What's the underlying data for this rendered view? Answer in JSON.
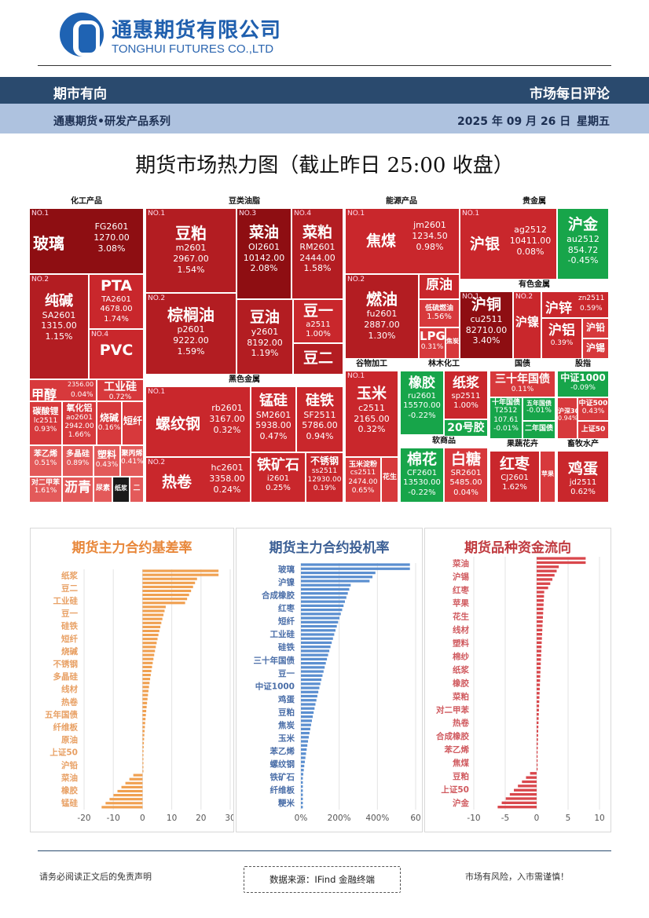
{
  "header": {
    "company_cn": "通惠期货有限公司",
    "company_en": "TONGHUI FUTURES CO.,LTD",
    "band_left": "期市有向",
    "band_right": "市场每日评论",
    "series": "通惠期货•研发产品系列",
    "date": "2025 年 09 月 26 日",
    "weekday": "星期五"
  },
  "title": "期货市场热力图（截止昨日 25:00 收盘）",
  "heatmap": {
    "sectors": [
      "化工产品",
      "豆类油脂",
      "能源产品",
      "贵金属",
      "有色金属",
      "黑色金属",
      "谷物加工",
      "林木化工",
      "国债",
      "股指",
      "软商品",
      "果蔬花卉",
      "畜牧水产"
    ],
    "tiles": [
      {
        "name": "玻璃",
        "code": "FG2601",
        "price": "1270.00",
        "chg": "3.08%",
        "no": "NO.1"
      },
      {
        "name": "PTA",
        "code": "TA2601",
        "price": "4678.00",
        "chg": "1.74%"
      },
      {
        "name": "纯碱",
        "code": "SA2601",
        "price": "1315.00",
        "chg": "1.15%",
        "no": "NO.2"
      },
      {
        "name": "PVC",
        "no": "NO.4"
      },
      {
        "name": "甲醇",
        "code": "2356.00",
        "chg": "0.04%"
      },
      {
        "name": "工业硅",
        "chg": "0.72%"
      },
      {
        "name": "碳酸锂",
        "code": "lc2511",
        "chg": "0.93%"
      },
      {
        "name": "氧化铝",
        "code": "ao2601",
        "price": "2942.00",
        "chg": "1.66%"
      },
      {
        "name": "烧碱",
        "chg": "0.16%"
      },
      {
        "name": "短纤"
      },
      {
        "name": "苯乙烯",
        "chg": "0.51%"
      },
      {
        "name": "多晶硅",
        "chg": "0.89%"
      },
      {
        "name": "塑料",
        "chg": "0.43%"
      },
      {
        "name": "聚丙烯",
        "chg": "0.41%"
      },
      {
        "name": "对二甲苯",
        "chg": "1.61%"
      },
      {
        "name": "沥青"
      },
      {
        "name": "尿素"
      },
      {
        "name": "纸浆"
      },
      {
        "name": "二"
      },
      {
        "name": "豆粕",
        "code": "m2601",
        "price": "2967.00",
        "chg": "1.54%",
        "no": "NO.1"
      },
      {
        "name": "菜油",
        "code": "OI2601",
        "price": "10142.00",
        "chg": "2.08%",
        "no": "NO.3"
      },
      {
        "name": "菜粕",
        "code": "RM2601",
        "price": "2444.00",
        "chg": "1.58%",
        "no": "NO.4"
      },
      {
        "name": "棕榈油",
        "code": "p2601",
        "price": "9222.00",
        "chg": "1.59%",
        "no": "NO.2"
      },
      {
        "name": "豆油",
        "code": "y2601",
        "price": "8192.00",
        "chg": "1.19%"
      },
      {
        "name": "豆一",
        "code": "a2511",
        "chg": "1.00%"
      },
      {
        "name": "豆二"
      },
      {
        "name": "焦煤",
        "code": "jm2601",
        "price": "1234.50",
        "chg": "0.98%",
        "no": "NO.1"
      },
      {
        "name": "燃油",
        "code": "fu2601",
        "price": "2887.00",
        "chg": "1.30%",
        "no": "NO.2"
      },
      {
        "name": "原油"
      },
      {
        "name": "低硫燃油",
        "chg": "1.56%"
      },
      {
        "name": "LPG",
        "chg": "0.31%"
      },
      {
        "name": "焦炭"
      },
      {
        "name": "沪银",
        "code": "ag2512",
        "price": "10411.00",
        "chg": "0.08%",
        "no": "NO.1"
      },
      {
        "name": "沪金",
        "code": "au2512",
        "price": "854.72",
        "chg": "-0.45%"
      },
      {
        "name": "沪铜",
        "code": "cu2511",
        "price": "82710.00",
        "chg": "3.40%",
        "no": "NO.1"
      },
      {
        "name": "沪镍",
        "no": "NO.2"
      },
      {
        "name": "沪锌",
        "code": "zn2511",
        "chg": "0.59%"
      },
      {
        "name": "沪铝",
        "chg": "0.39%"
      },
      {
        "name": "沪铅"
      },
      {
        "name": "沪锡"
      },
      {
        "name": "螺纹钢",
        "code": "rb2601",
        "price": "3167.00",
        "chg": "0.32%",
        "no": "NO.1"
      },
      {
        "name": "锰硅",
        "code": "SM2601",
        "price": "5938.00",
        "chg": "0.47%"
      },
      {
        "name": "硅铁",
        "code": "SF2511",
        "price": "5786.00",
        "chg": "0.94%"
      },
      {
        "name": "热卷",
        "code": "hc2601",
        "price": "3358.00",
        "chg": "0.24%",
        "no": "NO.2"
      },
      {
        "name": "铁矿石",
        "code": "i2601",
        "chg": "0.25%"
      },
      {
        "name": "不锈钢",
        "code": "ss2511",
        "price": "12930.00",
        "chg": "0.19%"
      },
      {
        "name": "玉米",
        "code": "c2511",
        "price": "2165.00",
        "chg": "0.32%",
        "no": "NO.1"
      },
      {
        "name": "玉米淀粉",
        "code": "cs2511",
        "price": "2474.00",
        "chg": "0.65%"
      },
      {
        "name": "花生"
      },
      {
        "name": "橡胶",
        "code": "ru2601",
        "price": "15570.00",
        "chg": "-0.22%"
      },
      {
        "name": "纸浆",
        "code": "sp2511",
        "chg": "1.00%"
      },
      {
        "name": "20号胶"
      },
      {
        "name": "三十年国债",
        "chg": "0.11%"
      },
      {
        "name": "十年国债",
        "code": "T2512",
        "price": "107.61",
        "chg": "-0.01%"
      },
      {
        "name": "五年国债",
        "chg": "-0.01%"
      },
      {
        "name": "二年国债"
      },
      {
        "name": "中证1000",
        "chg": "-0.09%"
      },
      {
        "name": "中证500",
        "chg": "0.43%"
      },
      {
        "name": "沪深300",
        "chg": "0.94%"
      },
      {
        "name": "上证50"
      },
      {
        "name": "棉花",
        "code": "CF2601",
        "price": "13530.00",
        "chg": "-0.22%"
      },
      {
        "name": "白糖",
        "code": "SR2601",
        "price": "5485.00",
        "chg": "0.04%"
      },
      {
        "name": "红枣",
        "code": "CJ2601",
        "chg": "1.62%"
      },
      {
        "name": "苹果"
      },
      {
        "name": "鸡蛋",
        "code": "jd2511",
        "chg": "0.62%"
      },
      {
        "name": "NO.2"
      }
    ]
  },
  "charts": {
    "basis": {
      "title": "期货主力合约基差率",
      "color": "#f0a050",
      "categories": [
        "纸浆",
        "豆二",
        "工业硅",
        "豆一",
        "硅铁",
        "短纤",
        "烧碱",
        "不锈钢",
        "多晶硅",
        "线材",
        "热卷",
        "五年国债",
        "纤维板",
        "原油",
        "上证50",
        "沪铅",
        "菜油",
        "橡胶",
        "锰硅"
      ],
      "ticks": [
        "-20",
        "-10",
        "0",
        "10",
        "20",
        "30"
      ],
      "xlim": [
        -20,
        30
      ]
    },
    "spec": {
      "title": "期货主力合约投机率",
      "color": "#5b8fd0",
      "categories": [
        "玻璃",
        "沪镍",
        "合成橡胶",
        "红枣",
        "短纤",
        "工业硅",
        "硅铁",
        "三十年国债",
        "豆一",
        "中证1000",
        "鸡蛋",
        "豆粕",
        "焦炭",
        "玉米",
        "苯乙烯",
        "螺纹钢",
        "铁矿石",
        "纤维板",
        "粳米"
      ],
      "ticks": [
        "0%",
        "200%",
        "400%",
        "60"
      ],
      "xlim": [
        0,
        600
      ]
    },
    "flow": {
      "title": "期货品种资金流向",
      "color": "#d9474c",
      "categories": [
        "菜油",
        "沪锡",
        "红枣",
        "苹果",
        "花生",
        "线材",
        "塑料",
        "棉纱",
        "纸浆",
        "橡胶",
        "菜粕",
        "对二甲苯",
        "热卷",
        "合成橡胶",
        "苯乙烯",
        "焦煤",
        "豆粕",
        "上证50",
        "沪金"
      ],
      "ticks": [
        "-10",
        "-5",
        "0",
        "5",
        "10"
      ],
      "xlim": [
        -10,
        10
      ]
    }
  },
  "footer": {
    "left": "请务必阅读正文后的免责声明",
    "source": "数据来源：IFind 金融终端",
    "right": "市场有风险，入市需谨慎！"
  }
}
